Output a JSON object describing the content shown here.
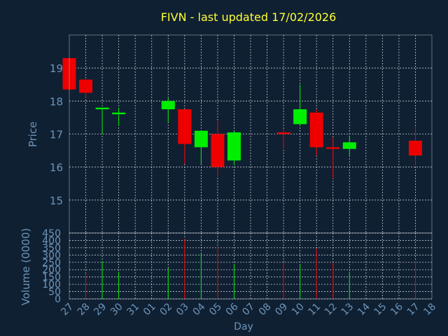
{
  "colors": {
    "background": "#0f2033",
    "plot_background": "#0f2033",
    "title": "#ffff33",
    "axis_text": "#6e95b8",
    "grid": "#ffffff",
    "frame": "#ffffff",
    "up": "#00ee00",
    "down": "#ee0000"
  },
  "chart_data": [
    {
      "type": "candlestick",
      "title": "FIVN - last updated 17/02/2026",
      "ylabel": "Price",
      "ylim": [
        14,
        20
      ],
      "yticks": [
        15,
        16,
        17,
        18,
        19
      ],
      "grid": true,
      "x": [
        "27",
        "28",
        "29",
        "30",
        "31",
        "01",
        "02",
        "03",
        "04",
        "05",
        "06",
        "07",
        "08",
        "09",
        "10",
        "11",
        "12",
        "13",
        "14",
        "15",
        "16",
        "17",
        "18"
      ],
      "candles": [
        {
          "day": "27",
          "open": 19.3,
          "high": 19.3,
          "low": 18.3,
          "close": 18.35
        },
        {
          "day": "28",
          "open": 18.65,
          "high": 18.65,
          "low": 18.1,
          "close": 18.25
        },
        {
          "day": "29",
          "open": 17.75,
          "high": 17.8,
          "low": 17.0,
          "close": 17.8
        },
        {
          "day": "30",
          "open": 17.6,
          "high": 17.8,
          "low": 17.25,
          "close": 17.65
        },
        {
          "day": "02",
          "open": 17.75,
          "high": 18.1,
          "low": 17.35,
          "close": 18.0
        },
        {
          "day": "03",
          "open": 17.75,
          "high": 17.75,
          "low": 16.1,
          "close": 16.7
        },
        {
          "day": "04",
          "open": 16.6,
          "high": 17.1,
          "low": 16.1,
          "close": 17.1
        },
        {
          "day": "05",
          "open": 17.0,
          "high": 17.4,
          "low": 15.7,
          "close": 16.0
        },
        {
          "day": "06",
          "open": 16.2,
          "high": 17.1,
          "low": 16.05,
          "close": 17.05
        },
        {
          "day": "09",
          "open": 17.05,
          "high": 17.15,
          "low": 16.55,
          "close": 17.0
        },
        {
          "day": "10",
          "open": 17.3,
          "high": 18.5,
          "low": 17.25,
          "close": 17.75
        },
        {
          "day": "11",
          "open": 17.65,
          "high": 17.75,
          "low": 16.35,
          "close": 16.6
        },
        {
          "day": "12",
          "open": 16.6,
          "high": 16.9,
          "low": 15.65,
          "close": 16.55
        },
        {
          "day": "13",
          "open": 16.55,
          "high": 16.95,
          "low": 16.35,
          "close": 16.75
        },
        {
          "day": "17",
          "open": 16.8,
          "high": 17.25,
          "low": 16.05,
          "close": 16.35
        }
      ]
    },
    {
      "type": "bar",
      "ylabel": "Volume (0000)",
      "xlabel": "Day",
      "ylim": [
        0,
        450
      ],
      "yticks": [
        0,
        50,
        100,
        150,
        200,
        250,
        300,
        350,
        400,
        450
      ],
      "grid": true,
      "categories": [
        "27",
        "28",
        "29",
        "30",
        "31",
        "01",
        "02",
        "03",
        "04",
        "05",
        "06",
        "07",
        "08",
        "09",
        "10",
        "11",
        "12",
        "13",
        "14",
        "15",
        "16",
        "17",
        "18"
      ],
      "bars": [
        {
          "day": "28",
          "value": 175,
          "direction": "down"
        },
        {
          "day": "29",
          "value": 260,
          "direction": "up"
        },
        {
          "day": "30",
          "value": 185,
          "direction": "up"
        },
        {
          "day": "02",
          "value": 210,
          "direction": "up"
        },
        {
          "day": "03",
          "value": 410,
          "direction": "down"
        },
        {
          "day": "04",
          "value": 310,
          "direction": "up"
        },
        {
          "day": "05",
          "value": 360,
          "direction": "down"
        },
        {
          "day": "06",
          "value": 240,
          "direction": "up"
        },
        {
          "day": "09",
          "value": 245,
          "direction": "down"
        },
        {
          "day": "10",
          "value": 235,
          "direction": "up"
        },
        {
          "day": "11",
          "value": 345,
          "direction": "down"
        },
        {
          "day": "12",
          "value": 250,
          "direction": "down"
        },
        {
          "day": "13",
          "value": 185,
          "direction": "up"
        },
        {
          "day": "17",
          "value": 260,
          "direction": "down"
        }
      ]
    }
  ]
}
